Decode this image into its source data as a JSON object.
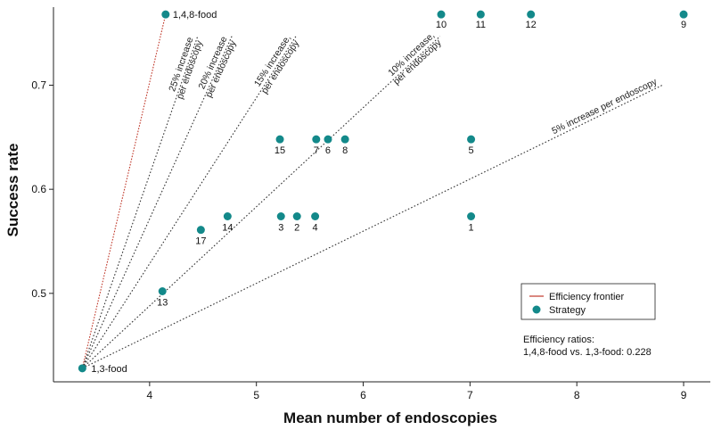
{
  "chart_data": {
    "type": "scatter",
    "xlabel": "Mean number of endoscopies",
    "ylabel": "Success rate",
    "xlim": [
      3.1,
      9.25
    ],
    "ylim": [
      0.415,
      0.775
    ],
    "xticks": [
      "4",
      "5",
      "6",
      "7",
      "8",
      "9"
    ],
    "yticks": [
      "0.5",
      "0.6",
      "0.7"
    ],
    "grid": false,
    "legend_position": "bottom-right",
    "legend": [
      "Efficiency frontier",
      "Strategy"
    ],
    "colors": {
      "point": "#13898a",
      "frontier": "#c0392b",
      "reference": "#333333"
    },
    "series": [
      {
        "name": "Strategy",
        "points": [
          {
            "label": "1,3-food",
            "x": 3.37,
            "y": 0.428
          },
          {
            "label": "1,4,8-food",
            "x": 4.15,
            "y": 0.768
          },
          {
            "label": "13",
            "x": 4.12,
            "y": 0.502
          },
          {
            "label": "17",
            "x": 4.48,
            "y": 0.561
          },
          {
            "label": "14",
            "x": 4.73,
            "y": 0.574
          },
          {
            "label": "3",
            "x": 5.23,
            "y": 0.574
          },
          {
            "label": "2",
            "x": 5.38,
            "y": 0.574
          },
          {
            "label": "4",
            "x": 5.55,
            "y": 0.574
          },
          {
            "label": "1",
            "x": 7.01,
            "y": 0.574
          },
          {
            "label": "15",
            "x": 5.22,
            "y": 0.648
          },
          {
            "label": "7",
            "x": 5.56,
            "y": 0.648
          },
          {
            "label": "6",
            "x": 5.67,
            "y": 0.648
          },
          {
            "label": "8",
            "x": 5.83,
            "y": 0.648
          },
          {
            "label": "5",
            "x": 7.01,
            "y": 0.648
          },
          {
            "label": "10",
            "x": 6.73,
            "y": 0.768
          },
          {
            "label": "11",
            "x": 7.1,
            "y": 0.768
          },
          {
            "label": "12",
            "x": 7.57,
            "y": 0.768
          },
          {
            "label": "9",
            "x": 9.0,
            "y": 0.768
          }
        ]
      }
    ],
    "frontier": {
      "name": "Efficiency frontier",
      "x": [
        3.37,
        4.15
      ],
      "y": [
        0.428,
        0.768
      ]
    },
    "reference_lines": [
      {
        "label": "25% increase per endoscopy",
        "lines": [
          "25% increase",
          "per endoscopy"
        ],
        "x_end": 4.45,
        "y_end": 0.747
      },
      {
        "label": "20% increase per endoscopy",
        "lines": [
          "20% increase",
          "per endoscopy"
        ],
        "x_end": 4.77,
        "y_end": 0.747
      },
      {
        "label": "15% increase per endoscopy",
        "lines": [
          "15% increase,",
          "per endoscopy"
        ],
        "x_end": 5.37,
        "y_end": 0.747
      },
      {
        "label": "10% increase per endoscopy",
        "lines": [
          "10% increase,",
          "per endoscopy"
        ],
        "x_end": 6.72,
        "y_end": 0.747
      },
      {
        "label": "5% increase per endoscopy",
        "lines": [
          "5% increase per endoscopy"
        ],
        "x_end": 8.8,
        "y_end": 0.7
      }
    ],
    "efficiency_note": {
      "title": "Efficiency ratios:",
      "text": "1,4,8-food vs. 1,3-food: 0.228"
    }
  }
}
